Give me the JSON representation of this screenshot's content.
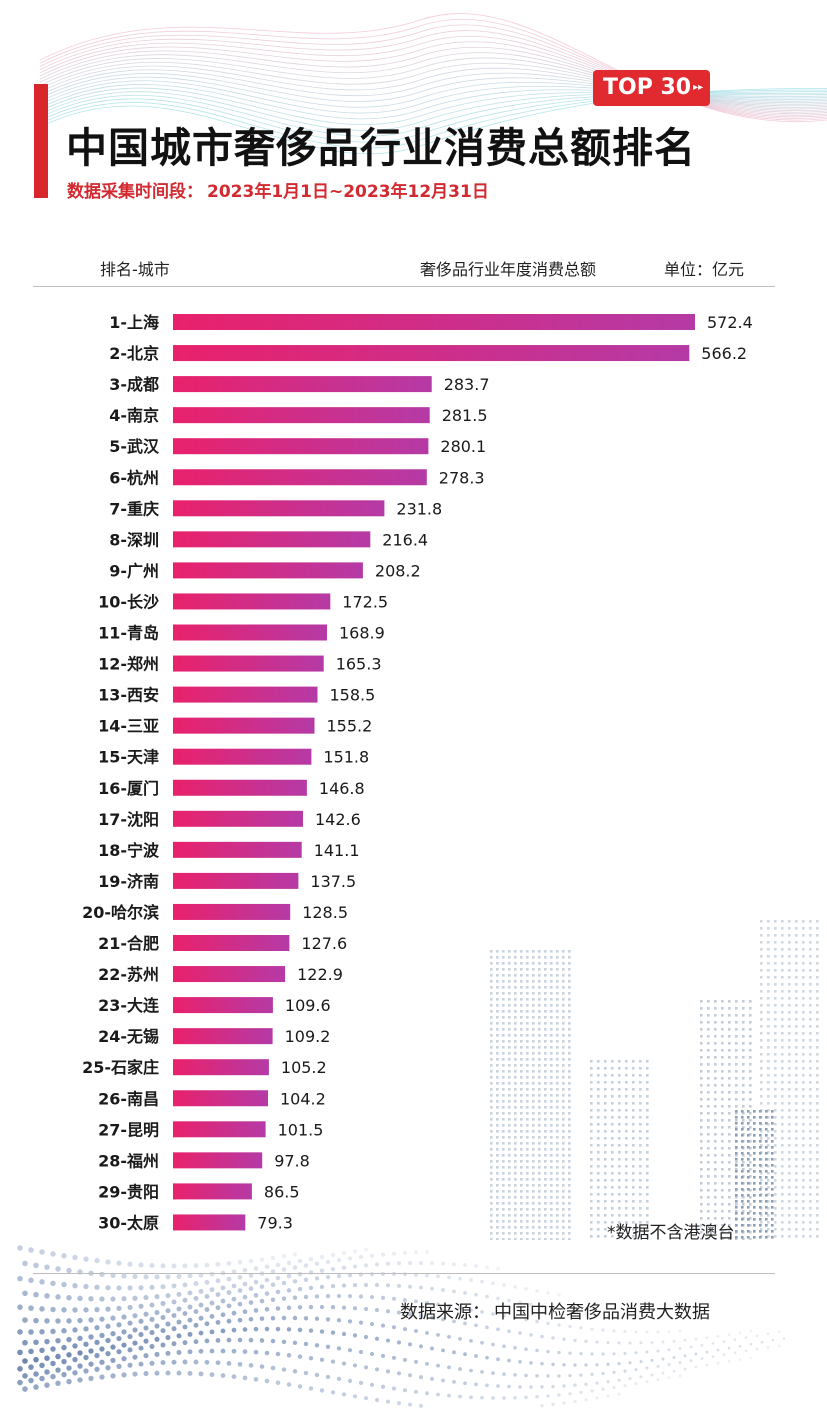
{
  "header": {
    "badge": "TOP 30",
    "badge_arrow": "▸▸",
    "title": "中国城市奢侈品行业消费总额排名",
    "period_label": "数据采集时间段：",
    "period_value": "2023年1月1日~2023年12月31日",
    "col_left": "排名-城市",
    "col_mid": "奢侈品行业年度消费总额",
    "col_unit": "单位：亿元"
  },
  "footer": {
    "note": "*数据不含港澳台",
    "source_label": "数据来源：",
    "source_value": "中国中检奢侈品消费大数据"
  },
  "colors": {
    "accent": "#d8262c",
    "bar_start": "#e9216b",
    "bar_end": "#b53aa6"
  },
  "chart_data": {
    "type": "bar",
    "orientation": "horizontal",
    "categories": [
      "1-上海",
      "2-北京",
      "3-成都",
      "4-南京",
      "5-武汉",
      "6-杭州",
      "7-重庆",
      "8-深圳",
      "9-广州",
      "10-长沙",
      "11-青岛",
      "12-郑州",
      "13-西安",
      "14-三亚",
      "15-天津",
      "16-厦门",
      "17-沈阳",
      "18-宁波",
      "19-济南",
      "20-哈尔滨",
      "21-合肥",
      "22-苏州",
      "23-大连",
      "24-无锡",
      "25-石家庄",
      "26-南昌",
      "27-昆明",
      "28-福州",
      "29-贵阳",
      "30-太原"
    ],
    "values": [
      572.4,
      566.2,
      283.7,
      281.5,
      280.1,
      278.3,
      231.8,
      216.4,
      208.2,
      172.5,
      168.9,
      165.3,
      158.5,
      155.2,
      151.8,
      146.8,
      142.6,
      141.1,
      137.5,
      128.5,
      127.6,
      122.9,
      109.6,
      109.2,
      105.2,
      104.2,
      101.5,
      97.8,
      86.5,
      79.3
    ],
    "value_labels": [
      "572.4",
      "566.2",
      "283.7",
      "281.5",
      "280.1",
      "278.3",
      "231.8",
      "216.4",
      "208.2",
      "172.5",
      "168.9",
      "165.3",
      "158.5",
      "155.2",
      "151.8",
      "146.8",
      "142.6",
      "141.1",
      "137.5",
      "128.5",
      "127.6",
      "122.9",
      "109.6",
      "109.2",
      "105.2",
      "104.2",
      "101.5",
      "97.8",
      "86.5",
      "79.3"
    ],
    "xlim": [
      0,
      572.4
    ],
    "grid": false,
    "legend": "none"
  }
}
